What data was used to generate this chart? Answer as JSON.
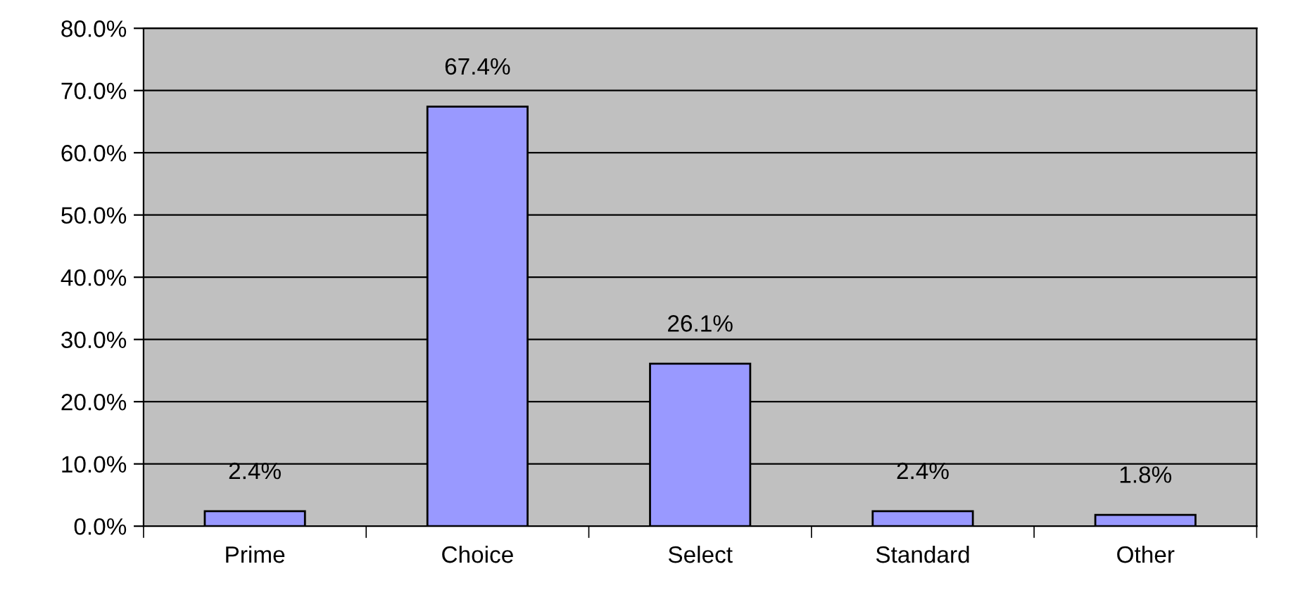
{
  "chart_data": {
    "type": "bar",
    "categories": [
      "Prime",
      "Choice",
      "Select",
      "Standard",
      "Other"
    ],
    "values": [
      2.4,
      67.4,
      26.1,
      2.4,
      1.8
    ],
    "value_labels": [
      "2.4%",
      "67.4%",
      "26.1%",
      "2.4%",
      "1.8%"
    ],
    "color": "#9999ff",
    "ylim": [
      0,
      80
    ],
    "yticks": [
      {
        "value": 0,
        "label": "0.0%"
      },
      {
        "value": 10,
        "label": "10.0%"
      },
      {
        "value": 20,
        "label": "20.0%"
      },
      {
        "value": 30,
        "label": "30.0%"
      },
      {
        "value": 40,
        "label": "40.0%"
      },
      {
        "value": 50,
        "label": "50.0%"
      },
      {
        "value": 60,
        "label": "60.0%"
      },
      {
        "value": 70,
        "label": "70.0%"
      },
      {
        "value": 80,
        "label": "80.0%"
      }
    ],
    "grid": "y",
    "legend": false
  }
}
